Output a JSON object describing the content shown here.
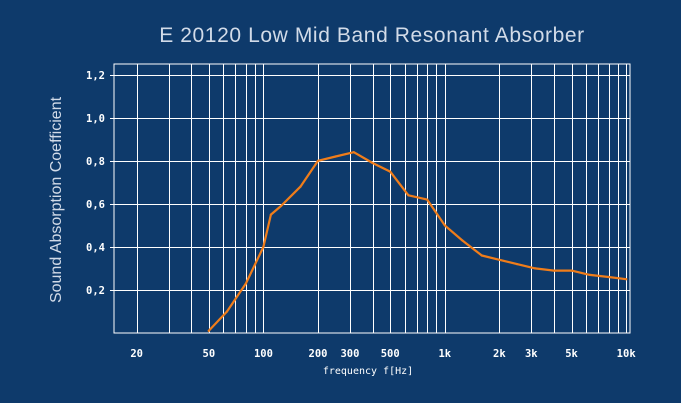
{
  "chart_data": {
    "type": "line",
    "title": "E 20120 Low Mid Band Resonant Absorber",
    "xlabel": "frequency f[Hz]",
    "ylabel": "Sound Absorption Coefficient",
    "x_scale": "log",
    "xlim": [
      15,
      10500
    ],
    "ylim": [
      0,
      1.25
    ],
    "grid": true,
    "x_ticks": [
      {
        "value": 20,
        "label": "20"
      },
      {
        "value": 50,
        "label": "50"
      },
      {
        "value": 100,
        "label": "100"
      },
      {
        "value": 200,
        "label": "200"
      },
      {
        "value": 300,
        "label": "300"
      },
      {
        "value": 500,
        "label": "500"
      },
      {
        "value": 1000,
        "label": "1k"
      },
      {
        "value": 2000,
        "label": "2k"
      },
      {
        "value": 3000,
        "label": "3k"
      },
      {
        "value": 5000,
        "label": "5k"
      },
      {
        "value": 10000,
        "label": "10k"
      }
    ],
    "y_ticks": [
      {
        "value": 0.2,
        "label": "0,2"
      },
      {
        "value": 0.4,
        "label": "0,4"
      },
      {
        "value": 0.6,
        "label": "0,6"
      },
      {
        "value": 0.8,
        "label": "0,8"
      },
      {
        "value": 1.0,
        "label": "1,0"
      },
      {
        "value": 1.2,
        "label": "1,2"
      }
    ],
    "series": [
      {
        "color": "#f07d1a",
        "x": [
          50,
          63,
          80,
          100,
          110,
          125,
          160,
          200,
          250,
          315,
          400,
          500,
          630,
          800,
          1000,
          1250,
          1600,
          2000,
          2500,
          3150,
          4000,
          5000,
          6300,
          8000,
          10000
        ],
        "y": [
          0.01,
          0.1,
          0.23,
          0.4,
          0.55,
          0.59,
          0.68,
          0.8,
          0.82,
          0.84,
          0.79,
          0.75,
          0.64,
          0.62,
          0.5,
          0.43,
          0.36,
          0.34,
          0.32,
          0.3,
          0.29,
          0.29,
          0.27,
          0.26,
          0.25
        ]
      }
    ]
  }
}
